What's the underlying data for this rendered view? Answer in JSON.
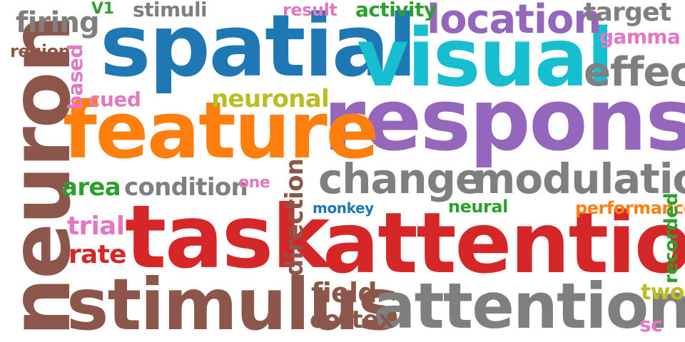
{
  "words": {
    "spatial": "spatial",
    "visual": "visual",
    "response": "response",
    "feature": "feature",
    "task": "task",
    "attention": "attention",
    "stimulus": "stimulus",
    "attentional": "attentional",
    "neuron": "neuron",
    "location": "location",
    "effect": "effect",
    "change": "change",
    "modulation": "modulation",
    "target": "target",
    "firing": "firing",
    "condition": "condition",
    "area": "area",
    "rate": "rate",
    "trial": "trial",
    "field": "field",
    "cortex": "cortex",
    "neuronal": "neuronal",
    "cued": "cued",
    "stimuli": "stimuli",
    "activity": "activity",
    "result": "result",
    "v1": "V1",
    "gamma": "gamma",
    "region": "region",
    "one": "one",
    "monkey": "monkey",
    "neural": "neural",
    "performance": "performance",
    "two": "two",
    "sc": "sc",
    "based": "based",
    "direction": "direction",
    "recorded": "recorded"
  },
  "colors": {
    "blue": "#1f77b4",
    "cyan": "#17becf",
    "purple": "#9467bd",
    "orange": "#ff7f0e",
    "red": "#d62728",
    "brown": "#8c564b",
    "gray": "#7f7f7f",
    "green": "#2ca02c",
    "pink": "#e377c2",
    "olive": "#bcbd22"
  }
}
